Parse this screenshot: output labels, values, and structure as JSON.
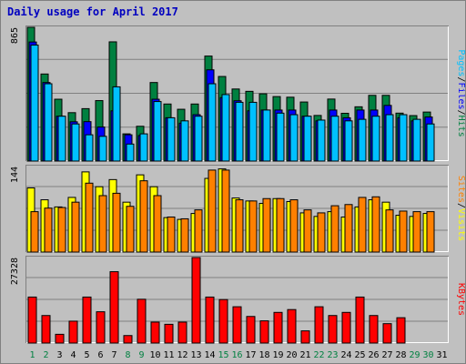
{
  "title": "Daily usage for April 2017",
  "colors": {
    "pages": "#00c0ff",
    "files": "#0000ff",
    "hits": "#008040",
    "visits": "#ffff00",
    "sites": "#ff8000",
    "kbytes": "#ff0000",
    "weekday_label": "#000000",
    "weekend_label": "#008040"
  },
  "chart_data": [
    {
      "type": "bar",
      "panel": "hits-files-pages",
      "y_max_label": "865",
      "ylim": [
        0,
        865
      ],
      "legend": [
        "Pages",
        "/",
        "Files",
        "/",
        "Hits"
      ],
      "categories": [
        "1",
        "2",
        "3",
        "4",
        "5",
        "6",
        "7",
        "8",
        "9",
        "10",
        "11",
        "12",
        "13",
        "14",
        "15",
        "16",
        "17",
        "18",
        "19",
        "20",
        "21",
        "22",
        "23",
        "24",
        "25",
        "26",
        "27",
        "28",
        "29",
        "30",
        "31"
      ],
      "weekend_days": [
        "1",
        "2",
        "8",
        "9",
        "15",
        "16",
        "22",
        "23",
        "29",
        "30"
      ],
      "series": [
        {
          "name": "Hits",
          "values": [
            865,
            563,
            400,
            313,
            339,
            391,
            771,
            176,
            225,
            508,
            369,
            335,
            369,
            679,
            547,
            466,
            451,
            435,
            417,
            413,
            382,
            295,
            401,
            309,
            351,
            425,
            425,
            310,
            294,
            317,
            0
          ]
        },
        {
          "name": "Files",
          "values": [
            770,
            508,
            290,
            254,
            255,
            220,
            325,
            170,
            165,
            400,
            280,
            245,
            300,
            590,
            410,
            390,
            325,
            330,
            330,
            330,
            290,
            260,
            330,
            280,
            330,
            330,
            360,
            280,
            260,
            285,
            0
          ]
        },
        {
          "name": "Pages",
          "values": [
            750,
            500,
            290,
            240,
            170,
            160,
            480,
            110,
            176,
            385,
            280,
            260,
            290,
            500,
            430,
            380,
            380,
            330,
            310,
            300,
            290,
            265,
            290,
            260,
            270,
            290,
            300,
            300,
            270,
            240,
            0
          ]
        }
      ]
    },
    {
      "type": "bar",
      "panel": "sites-visits",
      "y_max_label": "144",
      "ylim": [
        0,
        144
      ],
      "legend": [
        "Sites",
        "/",
        "Visits"
      ],
      "categories": [
        "1",
        "2",
        "3",
        "4",
        "5",
        "6",
        "7",
        "8",
        "9",
        "10",
        "11",
        "12",
        "13",
        "14",
        "15",
        "16",
        "17",
        "18",
        "19",
        "20",
        "21",
        "22",
        "23",
        "24",
        "25",
        "26",
        "27",
        "28",
        "29",
        "30",
        "31"
      ],
      "series": [
        {
          "name": "Visits",
          "values": [
            108,
            88,
            76,
            92,
            135,
            110,
            122,
            84,
            130,
            110,
            58,
            55,
            65,
            124,
            140,
            91,
            86,
            82,
            90,
            85,
            66,
            60,
            68,
            59,
            76,
            88,
            84,
            62,
            60,
            65,
            0
          ]
        },
        {
          "name": "Sites",
          "values": [
            68,
            74,
            75,
            84,
            116,
            95,
            99,
            77,
            120,
            95,
            59,
            56,
            71,
            138,
            138,
            88,
            86,
            90,
            90,
            88,
            71,
            66,
            78,
            80,
            92,
            93,
            71,
            69,
            68,
            68,
            0
          ]
        }
      ]
    },
    {
      "type": "bar",
      "panel": "kbytes",
      "y_max_label": "27328",
      "ylim": [
        0,
        27328
      ],
      "legend": [
        "KBytes"
      ],
      "categories": [
        "1",
        "2",
        "3",
        "4",
        "5",
        "6",
        "7",
        "8",
        "9",
        "10",
        "11",
        "12",
        "13",
        "14",
        "15",
        "16",
        "17",
        "18",
        "19",
        "20",
        "21",
        "22",
        "23",
        "24",
        "25",
        "26",
        "27",
        "28",
        "29",
        "30",
        "31"
      ],
      "series": [
        {
          "name": "KBytes",
          "values": [
            14700,
            8800,
            2800,
            7000,
            14700,
            10000,
            22800,
            2400,
            14000,
            6700,
            6000,
            6700,
            27328,
            14700,
            13900,
            11600,
            8500,
            7100,
            9800,
            10700,
            3900,
            11600,
            8800,
            9800,
            14700,
            8800,
            6200,
            8100,
            0,
            0,
            0
          ]
        }
      ]
    }
  ]
}
